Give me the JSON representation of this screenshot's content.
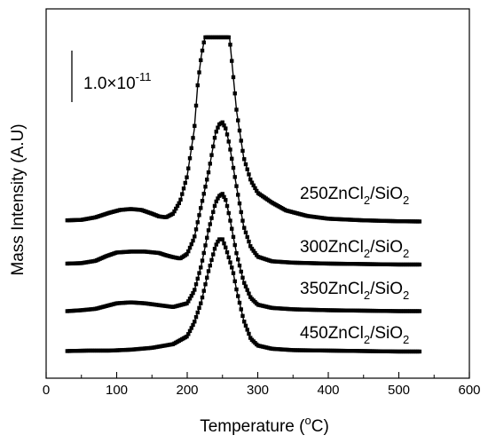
{
  "chart_data": {
    "type": "line",
    "xlabel": "Temperature (",
    "xlabel_sup": "o",
    "xlabel_tail": "C)",
    "ylabel": "Mass Intensity (A.U)",
    "xlim": [
      0,
      600
    ],
    "xticks": [
      "0",
      "100",
      "200",
      "300",
      "400",
      "500",
      "600"
    ],
    "scale_bar": {
      "base": "1.0×10",
      "exponent": "-11"
    },
    "grid": false,
    "series": [
      {
        "label": {
          "pre": "250ZnCl",
          "sub1": "2",
          "mid": "/SiO",
          "sub2": "2"
        },
        "color": "#000000",
        "x": [
          30,
          50,
          70,
          90,
          105,
          120,
          135,
          150,
          160,
          170,
          180,
          190,
          200,
          210,
          215,
          220,
          225,
          230,
          240,
          250,
          260,
          270,
          280,
          290,
          300,
          320,
          340,
          370,
          400,
          450,
          500,
          530
        ],
        "y": [
          0.35,
          0.45,
          1.0,
          2.0,
          2.6,
          2.8,
          2.6,
          1.8,
          1.2,
          1.0,
          1.8,
          4.5,
          10.0,
          20.0,
          30.0,
          36.0,
          40.0,
          40.0,
          40.0,
          40.0,
          40.0,
          24.0,
          14.0,
          9.0,
          6.3,
          4.2,
          2.5,
          1.3,
          0.7,
          0.35,
          0.15,
          0.1
        ]
      },
      {
        "label": {
          "pre": "300ZnCl",
          "sub1": "2",
          "mid": "/SiO",
          "sub2": "2"
        },
        "color": "#000000",
        "x": [
          30,
          50,
          70,
          85,
          100,
          120,
          140,
          160,
          170,
          180,
          190,
          200,
          210,
          220,
          230,
          240,
          245,
          250,
          255,
          260,
          270,
          280,
          290,
          300,
          320,
          350,
          400,
          450,
          500,
          530
        ],
        "y": [
          0.4,
          0.5,
          1.0,
          2.0,
          2.8,
          3.0,
          3.0,
          2.7,
          2.2,
          1.8,
          1.5,
          2.5,
          6.0,
          13.0,
          20.0,
          28.5,
          30.5,
          31.0,
          29.5,
          26.0,
          17.0,
          8.5,
          4.0,
          1.9,
          0.9,
          0.6,
          0.4,
          0.3,
          0.2,
          0.2
        ]
      },
      {
        "label": {
          "pre": "350ZnCl",
          "sub1": "2",
          "mid": "/SiO",
          "sub2": "2"
        },
        "color": "#000000",
        "x": [
          30,
          50,
          70,
          85,
          100,
          120,
          140,
          160,
          180,
          200,
          210,
          220,
          230,
          240,
          245,
          250,
          255,
          260,
          270,
          280,
          290,
          300,
          320,
          350,
          400,
          450,
          500,
          530
        ],
        "y": [
          0.1,
          0.3,
          0.6,
          1.2,
          1.8,
          2.0,
          1.8,
          1.4,
          1.0,
          1.8,
          4.5,
          10.0,
          17.5,
          23.5,
          25.0,
          25.5,
          24.0,
          20.5,
          12.5,
          6.5,
          3.0,
          1.5,
          0.8,
          0.5,
          0.3,
          0.2,
          0.1,
          0.1
        ]
      },
      {
        "label": {
          "pre": "450ZnCl",
          "sub1": "2",
          "mid": "/SiO",
          "sub2": "2"
        },
        "color": "#000000",
        "x": [
          30,
          60,
          90,
          120,
          150,
          180,
          200,
          210,
          220,
          230,
          240,
          245,
          250,
          255,
          260,
          265,
          270,
          280,
          290,
          300,
          320,
          350,
          400,
          450,
          500,
          530
        ],
        "y": [
          0.3,
          0.4,
          0.4,
          0.6,
          1.0,
          1.8,
          3.5,
          6.5,
          11.0,
          17.5,
          23.0,
          24.5,
          24.5,
          22.5,
          20.0,
          17.5,
          13.5,
          7.0,
          3.0,
          1.5,
          0.8,
          0.5,
          0.4,
          0.3,
          0.2,
          0.2
        ]
      }
    ]
  }
}
